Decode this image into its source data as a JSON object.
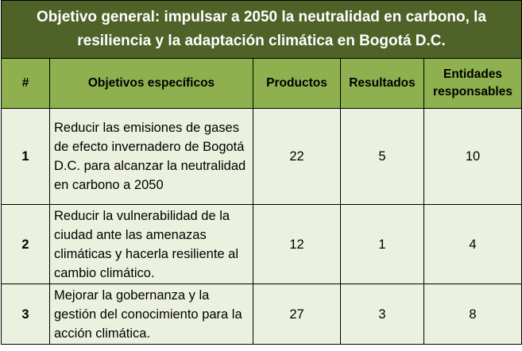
{
  "table": {
    "title": "Objetivo general: impulsar a 2050 la neutralidad en carbono, la resiliencia y la adaptación climática en Bogotá D.C.",
    "header": [
      "#",
      "Objetivos específicos",
      "Productos",
      "Resultados",
      "Entidades responsables"
    ],
    "rows": [
      [
        1,
        "Reducir las emisiones de gases de efecto invernadero de Bogotá D.C. para alcanzar la neutralidad en carbono a 2050",
        22,
        5,
        10
      ],
      [
        2,
        "Reducir la vulnerabilidad de la ciudad ante las amenazas climáticas y hacerla resiliente al cambio climático.",
        12,
        1,
        4
      ],
      [
        3,
        "Mejorar la gobernanza y la gestión del conocimiento para la acción climática.",
        27,
        3,
        8
      ]
    ]
  }
}
